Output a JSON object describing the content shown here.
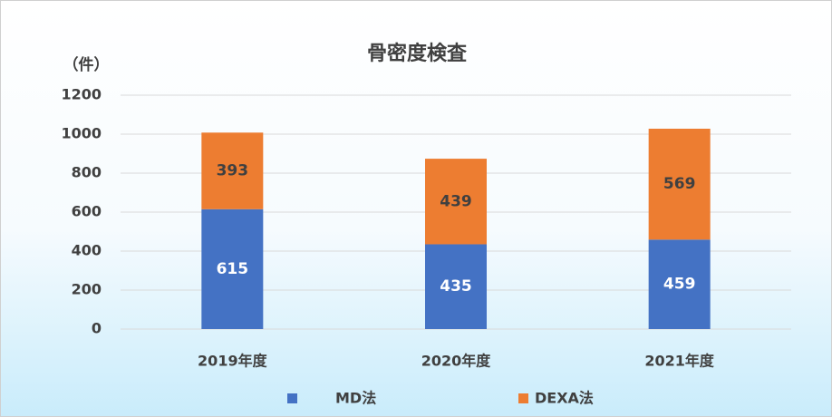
{
  "chart_data": {
    "type": "bar",
    "stacked": true,
    "title": "骨密度検査",
    "y_label": "（件）",
    "categories": [
      "2019年度",
      "2020年度",
      "2021年度"
    ],
    "series": [
      {
        "name": "MD法",
        "color": "#4472c4",
        "values": [
          615,
          435,
          459
        ]
      },
      {
        "name": "DEXA法",
        "color": "#ed7d31",
        "values": [
          393,
          439,
          569
        ]
      }
    ],
    "ylim": [
      0,
      1200
    ],
    "yticks": [
      0,
      200,
      400,
      600,
      800,
      1000,
      1200
    ],
    "grid": true,
    "legend": "bottom"
  }
}
